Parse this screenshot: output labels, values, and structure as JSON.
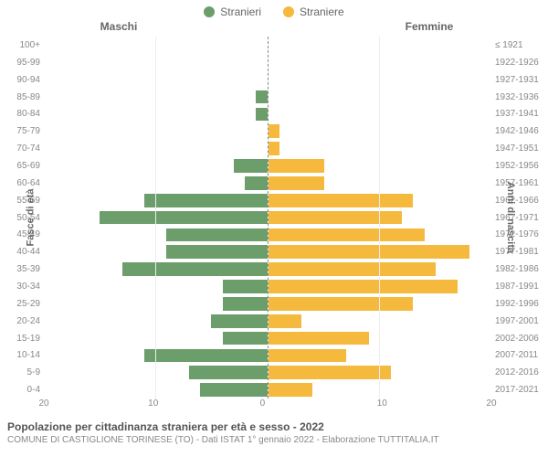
{
  "legend": {
    "male": {
      "label": "Stranieri",
      "color": "#6b9e6b"
    },
    "female": {
      "label": "Straniere",
      "color": "#f5b93d"
    }
  },
  "column_titles": {
    "left": "Maschi",
    "right": "Femmine"
  },
  "axis_titles": {
    "left": "Fasce di età",
    "right": "Anni di nascita"
  },
  "age_labels": [
    "100+",
    "95-99",
    "90-94",
    "85-89",
    "80-84",
    "75-79",
    "70-74",
    "65-69",
    "60-64",
    "55-59",
    "50-54",
    "45-49",
    "40-44",
    "35-39",
    "30-34",
    "25-29",
    "20-24",
    "15-19",
    "10-14",
    "5-9",
    "0-4"
  ],
  "year_labels": [
    "≤ 1921",
    "1922-1926",
    "1927-1931",
    "1932-1936",
    "1937-1941",
    "1942-1946",
    "1947-1951",
    "1952-1956",
    "1957-1961",
    "1962-1966",
    "1967-1971",
    "1972-1976",
    "1977-1981",
    "1982-1986",
    "1987-1991",
    "1992-1996",
    "1997-2001",
    "2002-2006",
    "2007-2011",
    "2012-2016",
    "2017-2021"
  ],
  "male_values": [
    0,
    0,
    0,
    1,
    1,
    0,
    0,
    3,
    2,
    11,
    15,
    9,
    9,
    13,
    4,
    4,
    5,
    4,
    11,
    7,
    6
  ],
  "female_values": [
    0,
    0,
    0,
    0,
    0,
    1,
    1,
    5,
    5,
    13,
    12,
    14,
    18,
    15,
    17,
    13,
    3,
    9,
    7,
    11,
    4
  ],
  "x_max": 20,
  "x_ticks": [
    20,
    10,
    0,
    10,
    20
  ],
  "styling": {
    "bar_color_male": "#6b9e6b",
    "bar_color_female": "#f5b93d",
    "grid_color": "#eeeeee",
    "axis_dash_color": "#888888",
    "tick_fontsize": 10,
    "label_fontsize": 11,
    "background": "#ffffff"
  },
  "caption1": "Popolazione per cittadinanza straniera per età e sesso - 2022",
  "caption2": "COMUNE DI CASTIGLIONE TORINESE (TO) - Dati ISTAT 1° gennaio 2022 - Elaborazione TUTTITALIA.IT"
}
